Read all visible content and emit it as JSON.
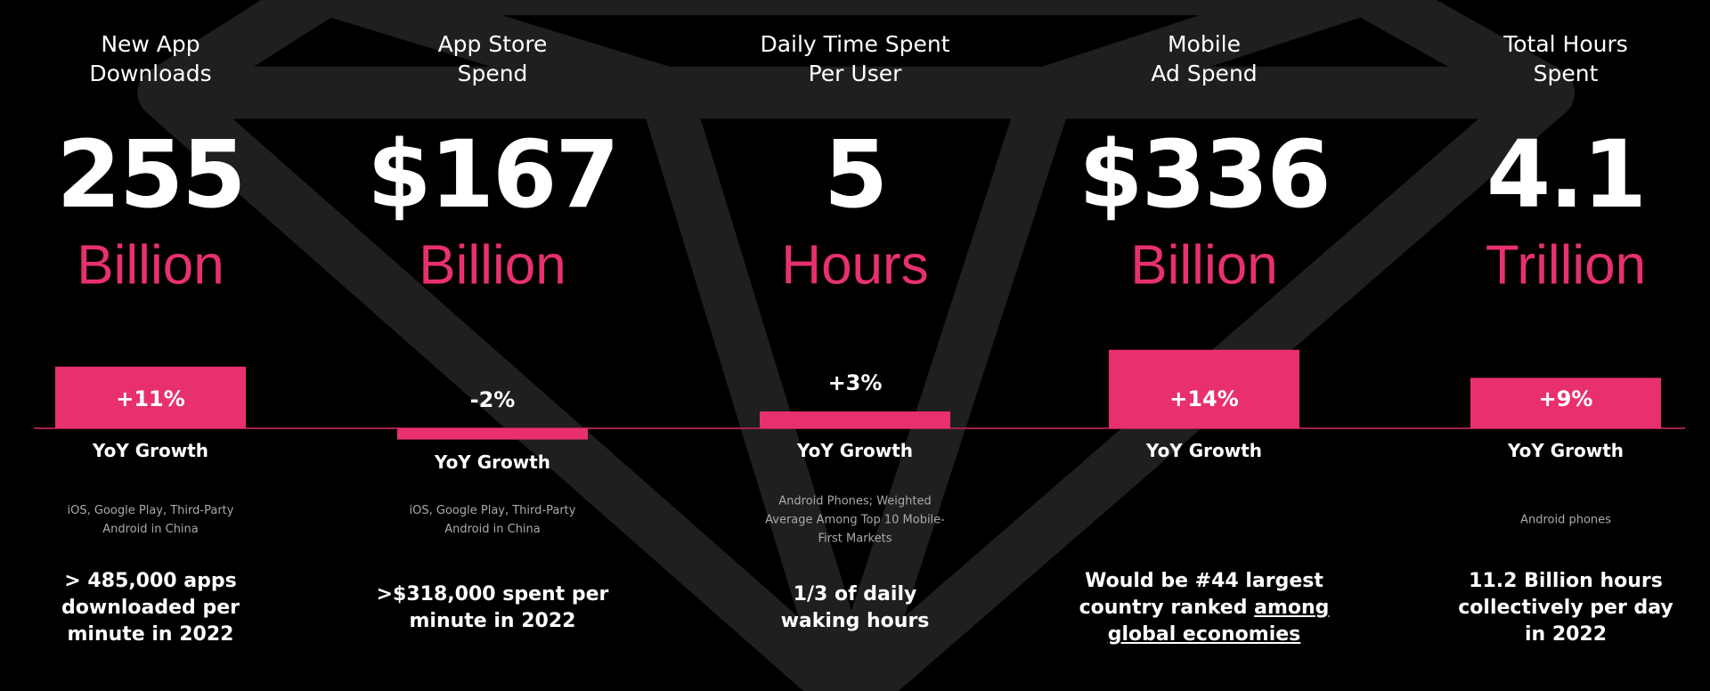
{
  "columns": [
    {
      "figure": "255",
      "unit": "Billion",
      "growth_label": "YoY Growth",
      "note": "iOS, Google Play, Third-Party\nAndroid in China",
      "highlight": "> 485,000 apps\ndownloaded per\nminute in 2022"
    },
    {
      "figure": "$167",
      "unit": "Billion",
      "growth_label": "YoY Growth",
      "note": "iOS, Google Play, Third-Party\nAndroid in China",
      "highlight": ">$318,000 spent per\nminute in 2022"
    },
    {
      "figure": "5",
      "unit": "Hours",
      "growth_label": "YoY Growth",
      "note": "Android Phones; Weighted\nAverage Among Top 10 Mobile-\nFirst Markets",
      "highlight": "1/3 of daily\nwaking hours"
    },
    {
      "figure": "$336",
      "unit": "Billion",
      "growth_label": "YoY Growth",
      "highlight": "Would be #44 largest\ncountry ranked ",
      "highlight_link": "among\nglobal economies"
    },
    {
      "figure": "4.1",
      "unit": "Trillion",
      "growth_label": "YoY Growth",
      "note": "Android phones",
      "highlight": "11.2 Billion hours\ncollectively per day\nin 2022"
    }
  ],
  "chart_data": {
    "type": "bar",
    "categories": [
      "New App\nDownloads",
      "App Store\nSpend",
      "Daily Time Spent\nPer User",
      "Mobile\nAd Spend",
      "Total Hours\nSpent"
    ],
    "values": [
      11,
      -2,
      3,
      14,
      9
    ],
    "value_labels": [
      "+11%",
      "-2%",
      "+3%",
      "+14%",
      "+9%"
    ],
    "color": "#e8316c"
  }
}
